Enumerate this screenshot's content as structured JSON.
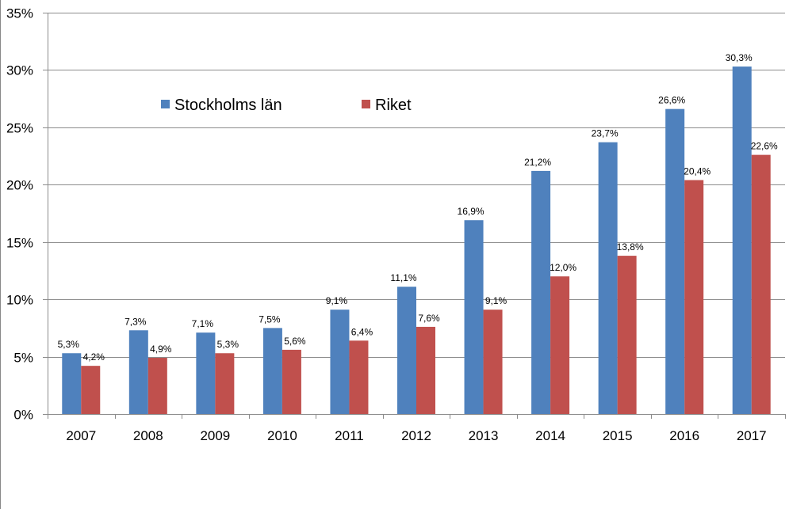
{
  "chart_data": {
    "type": "bar",
    "categories": [
      "2007",
      "2008",
      "2009",
      "2010",
      "2011",
      "2012",
      "2013",
      "2014",
      "2015",
      "2016",
      "2017"
    ],
    "series": [
      {
        "name": "Stockholms län",
        "color": "#4F81BD",
        "values": [
          5.3,
          7.3,
          7.1,
          7.5,
          9.1,
          11.1,
          16.9,
          21.2,
          23.7,
          26.6,
          30.3
        ],
        "labels": [
          "5,3%",
          "7,3%",
          "7,1%",
          "7,5%",
          "9,1%",
          "11,1%",
          "16,9%",
          "21,2%",
          "23,7%",
          "26,6%",
          "30,3%"
        ]
      },
      {
        "name": "Riket",
        "color": "#C0504D",
        "values": [
          4.2,
          4.9,
          5.3,
          5.6,
          6.4,
          7.6,
          9.1,
          12.0,
          13.8,
          20.4,
          22.6
        ],
        "labels": [
          "4,2%",
          "4,9%",
          "5,3%",
          "5,6%",
          "6,4%",
          "7,6%",
          "9,1%",
          "12,0%",
          "13,8%",
          "20,4%",
          "22,6%"
        ]
      }
    ],
    "yticks": [
      0,
      5,
      10,
      15,
      20,
      25,
      30,
      35
    ],
    "ytick_labels": [
      "0%",
      "5%",
      "10%",
      "15%",
      "20%",
      "25%",
      "30%",
      "35%"
    ],
    "ylim": [
      0,
      35
    ],
    "title": "",
    "xlabel": "",
    "ylabel": "",
    "grid": true,
    "legend_position": "top-left inside plot"
  }
}
